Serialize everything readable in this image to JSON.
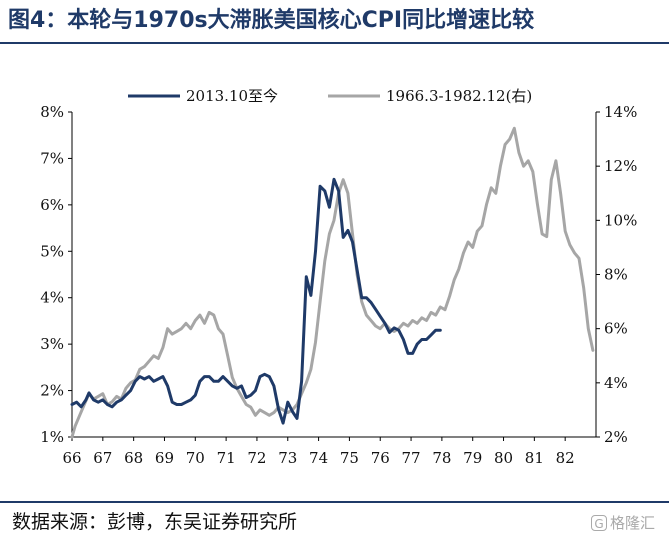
{
  "header": {
    "title": "图4：本轮与1970s大滞胀美国核心CPI同比增速比较"
  },
  "footer": {
    "source": "数据来源：彭博，东吴证券研究所",
    "watermark": "格隆汇"
  },
  "colors": {
    "series_a": "#1f3a68",
    "series_b": "#a6a6a6",
    "title": "#1f3a68"
  },
  "chart_data": {
    "type": "line",
    "title": "图4：本轮与1970s大滞胀美国核心CPI同比增速比较",
    "x_ticks": [
      "66",
      "67",
      "68",
      "69",
      "70",
      "71",
      "72",
      "73",
      "74",
      "75",
      "76",
      "77",
      "78",
      "79",
      "80",
      "81",
      "82"
    ],
    "y_left": {
      "ticks": [
        "1%",
        "2%",
        "3%",
        "4%",
        "5%",
        "6%",
        "7%",
        "8%"
      ],
      "range": [
        1,
        8
      ]
    },
    "y_right": {
      "ticks": [
        "2%",
        "4%",
        "6%",
        "8%",
        "10%",
        "12%",
        "14%"
      ],
      "range": [
        2,
        14
      ]
    },
    "legend": {
      "position": "top",
      "items": [
        "2013.10至今",
        "1966.3-1982.12(右)"
      ]
    },
    "series": [
      {
        "name": "2013.10至今",
        "axis": "left",
        "x": [
          66.0,
          66.15,
          66.3,
          66.45,
          66.55,
          66.7,
          66.85,
          67.0,
          67.15,
          67.3,
          67.45,
          67.6,
          67.75,
          67.9,
          68.05,
          68.2,
          68.35,
          68.5,
          68.65,
          68.8,
          68.95,
          69.1,
          69.25,
          69.4,
          69.55,
          69.7,
          69.85,
          70.0,
          70.15,
          70.3,
          70.45,
          70.6,
          70.75,
          70.9,
          71.05,
          71.2,
          71.35,
          71.5,
          71.65,
          71.8,
          71.95,
          72.1,
          72.25,
          72.4,
          72.55,
          72.7,
          72.85,
          73.0,
          73.15,
          73.3,
          73.45,
          73.6,
          73.75,
          73.9,
          74.05,
          74.2,
          74.35,
          74.5,
          74.65,
          74.8,
          74.95,
          75.1,
          75.25,
          75.4,
          75.55,
          75.7,
          75.85,
          76.0,
          76.15,
          76.3,
          76.45,
          76.6,
          76.75,
          76.9,
          77.05,
          77.2,
          77.35,
          77.5,
          77.65,
          77.8,
          77.95
        ],
        "values": [
          1.7,
          1.75,
          1.65,
          1.8,
          1.95,
          1.8,
          1.75,
          1.8,
          1.7,
          1.65,
          1.75,
          1.8,
          1.9,
          2.0,
          2.2,
          2.3,
          2.25,
          2.3,
          2.2,
          2.25,
          2.3,
          2.1,
          1.75,
          1.7,
          1.7,
          1.75,
          1.8,
          1.9,
          2.2,
          2.3,
          2.3,
          2.2,
          2.2,
          2.3,
          2.2,
          2.1,
          2.05,
          2.1,
          1.85,
          1.9,
          2.0,
          2.3,
          2.35,
          2.3,
          2.1,
          1.6,
          1.3,
          1.75,
          1.55,
          1.4,
          2.2,
          4.45,
          4.05,
          5.0,
          6.4,
          6.3,
          5.95,
          6.55,
          6.3,
          5.3,
          5.45,
          5.2,
          4.6,
          4.0,
          4.0,
          3.9,
          3.75,
          3.6,
          3.45,
          3.25,
          3.35,
          3.3,
          3.1,
          2.8,
          2.8,
          3.0,
          3.1,
          3.1,
          3.2,
          3.3,
          3.3
        ]
      },
      {
        "name": "1966.3-1982.12(右)",
        "axis": "right",
        "x": [
          66.0,
          66.1,
          66.25,
          66.4,
          66.55,
          66.7,
          66.85,
          67.0,
          67.15,
          67.3,
          67.45,
          67.6,
          67.75,
          67.9,
          68.05,
          68.2,
          68.35,
          68.5,
          68.65,
          68.8,
          68.95,
          69.1,
          69.25,
          69.4,
          69.55,
          69.7,
          69.85,
          70.0,
          70.15,
          70.3,
          70.45,
          70.6,
          70.75,
          70.9,
          71.05,
          71.2,
          71.35,
          71.5,
          71.65,
          71.8,
          71.95,
          72.1,
          72.25,
          72.4,
          72.55,
          72.7,
          72.85,
          73.0,
          73.15,
          73.3,
          73.45,
          73.6,
          73.75,
          73.9,
          74.05,
          74.2,
          74.35,
          74.5,
          74.65,
          74.8,
          74.95,
          75.1,
          75.25,
          75.4,
          75.55,
          75.7,
          75.85,
          76.0,
          76.15,
          76.3,
          76.45,
          76.6,
          76.75,
          76.9,
          77.05,
          77.2,
          77.35,
          77.5,
          77.65,
          77.8,
          77.95,
          78.1,
          78.25,
          78.4,
          78.55,
          78.7,
          78.85,
          79.0,
          79.15,
          79.3,
          79.45,
          79.6,
          79.75,
          79.9,
          80.05,
          80.2,
          80.35,
          80.5,
          80.65,
          80.8,
          80.95,
          81.1,
          81.25,
          81.4,
          81.55,
          81.7,
          81.85,
          82.0,
          82.15,
          82.3,
          82.45,
          82.6,
          82.75,
          82.9
        ],
        "values": [
          2.0,
          2.4,
          2.8,
          3.2,
          3.6,
          3.4,
          3.5,
          3.6,
          3.2,
          3.3,
          3.5,
          3.4,
          3.8,
          4.0,
          4.1,
          4.5,
          4.6,
          4.8,
          5.0,
          4.9,
          5.3,
          6.0,
          5.8,
          5.9,
          6.0,
          6.2,
          6.0,
          6.3,
          6.5,
          6.2,
          6.6,
          6.5,
          6.0,
          5.8,
          5.0,
          4.2,
          3.8,
          3.5,
          3.2,
          3.1,
          2.8,
          3.0,
          2.9,
          2.8,
          2.9,
          3.1,
          3.0,
          2.9,
          3.0,
          3.2,
          3.6,
          4.0,
          4.5,
          5.5,
          7.0,
          8.5,
          9.5,
          10.0,
          11.0,
          11.5,
          11.0,
          9.5,
          8.0,
          7.0,
          6.5,
          6.3,
          6.1,
          6.0,
          6.2,
          6.0,
          5.9,
          6.0,
          6.2,
          6.1,
          6.3,
          6.2,
          6.4,
          6.3,
          6.6,
          6.5,
          6.8,
          6.7,
          7.2,
          7.8,
          8.2,
          8.8,
          9.2,
          9.0,
          9.6,
          9.8,
          10.6,
          11.2,
          11.0,
          12.0,
          12.8,
          13.0,
          13.4,
          12.5,
          12.0,
          12.2,
          11.8,
          10.6,
          9.5,
          9.4,
          11.5,
          12.2,
          11.0,
          9.6,
          9.1,
          8.8,
          8.6,
          7.5,
          6.0,
          5.2
        ]
      }
    ]
  }
}
